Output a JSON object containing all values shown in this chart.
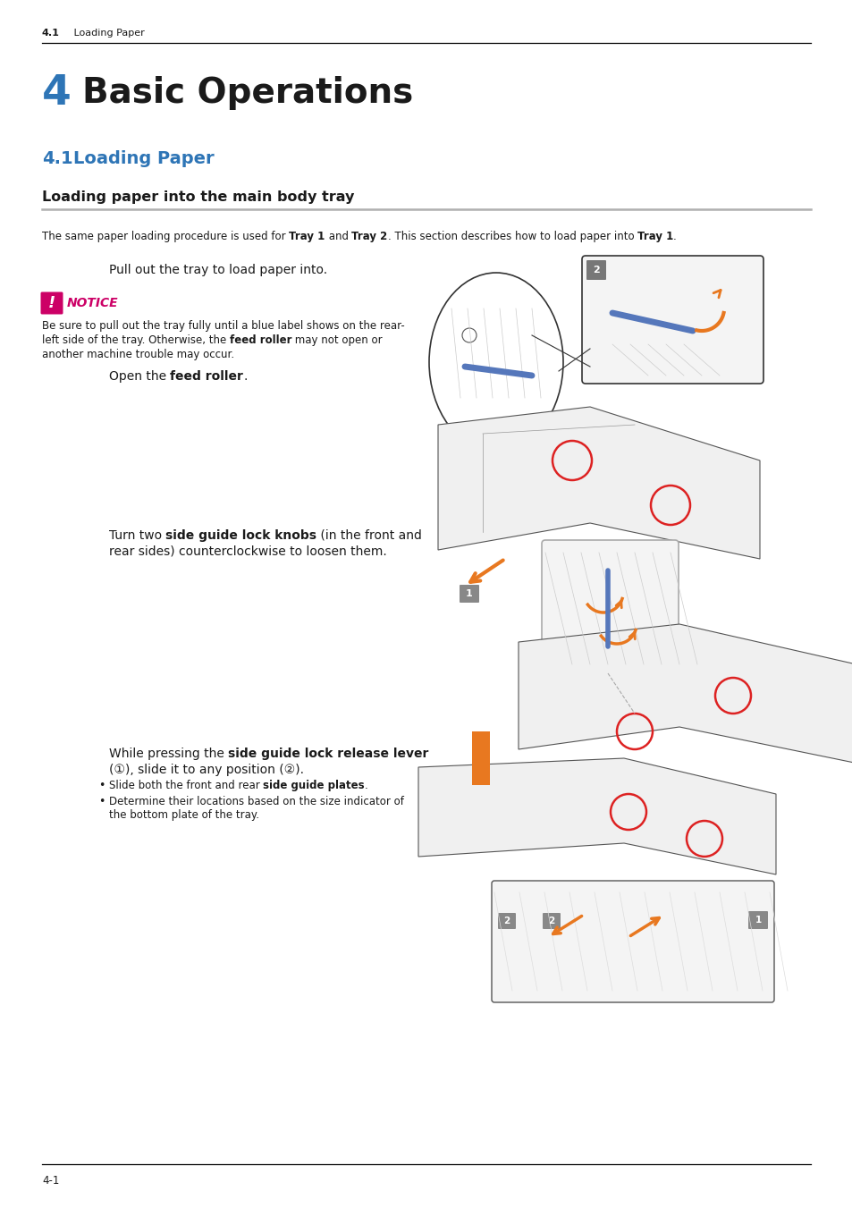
{
  "bg_color": "#ffffff",
  "header_text_num": "4.1",
  "header_text_title": "     Loading Paper",
  "chapter_num": "4",
  "chapter_num_color": "#2e75b6",
  "chapter_title": "Basic Operations",
  "chapter_title_color": "#1a1a1a",
  "section_num": "4.1",
  "section_title": "Loading Paper",
  "section_color": "#2e75b6",
  "subsection_title": "Loading paper into the main body tray",
  "subsection_line_color": "#b0b0b0",
  "intro_parts": [
    [
      "The same paper loading procedure is used for ",
      false
    ],
    [
      "Tray 1",
      true
    ],
    [
      " and ",
      false
    ],
    [
      "Tray 2",
      true
    ],
    [
      ". This section describes how to load paper into ",
      false
    ],
    [
      "Tray 1",
      true
    ],
    [
      ".",
      false
    ]
  ],
  "step1_text": "Pull out the tray to load paper into.",
  "notice_icon_color": "#cc0066",
  "notice_label": "NOTICE",
  "notice_lines": [
    [
      "Be sure to pull out the tray fully until a blue label shows on the rear-",
      false
    ],
    [
      "left side of the tray. Otherwise, the ",
      false,
      "feed roller",
      true,
      " may not open or",
      false
    ],
    [
      "another machine trouble may occur.",
      false
    ]
  ],
  "step2_parts": [
    [
      "Open the ",
      false
    ],
    [
      "feed roller",
      true
    ],
    [
      ".",
      false
    ]
  ],
  "step3_parts": [
    [
      "Turn two ",
      false
    ],
    [
      "side guide lock knobs",
      true
    ],
    [
      " (in the front and",
      false
    ]
  ],
  "step3_line2": "rear sides) counterclockwise to loosen them.",
  "step4_parts": [
    [
      "While pressing the ",
      false
    ],
    [
      "side guide lock release lever",
      true
    ]
  ],
  "step4_line2": "(①), slide it to any position (②).",
  "bullet1_parts": [
    [
      "Slide both the front and rear ",
      false
    ],
    [
      "side guide plates",
      true
    ],
    [
      ".",
      false
    ]
  ],
  "bullet2_lines": [
    "Determine their locations based on the size indicator of",
    "the bottom plate of the tray."
  ],
  "footer_page": "4-1",
  "orange": "#e87820",
  "red_circle": "#dd2222",
  "blue_label": "#5577bb",
  "step_label_bg": "#888888",
  "diagram_line": "#444444",
  "diagram_fill": "#f8f8f8",
  "diagram_dark": "#888888"
}
